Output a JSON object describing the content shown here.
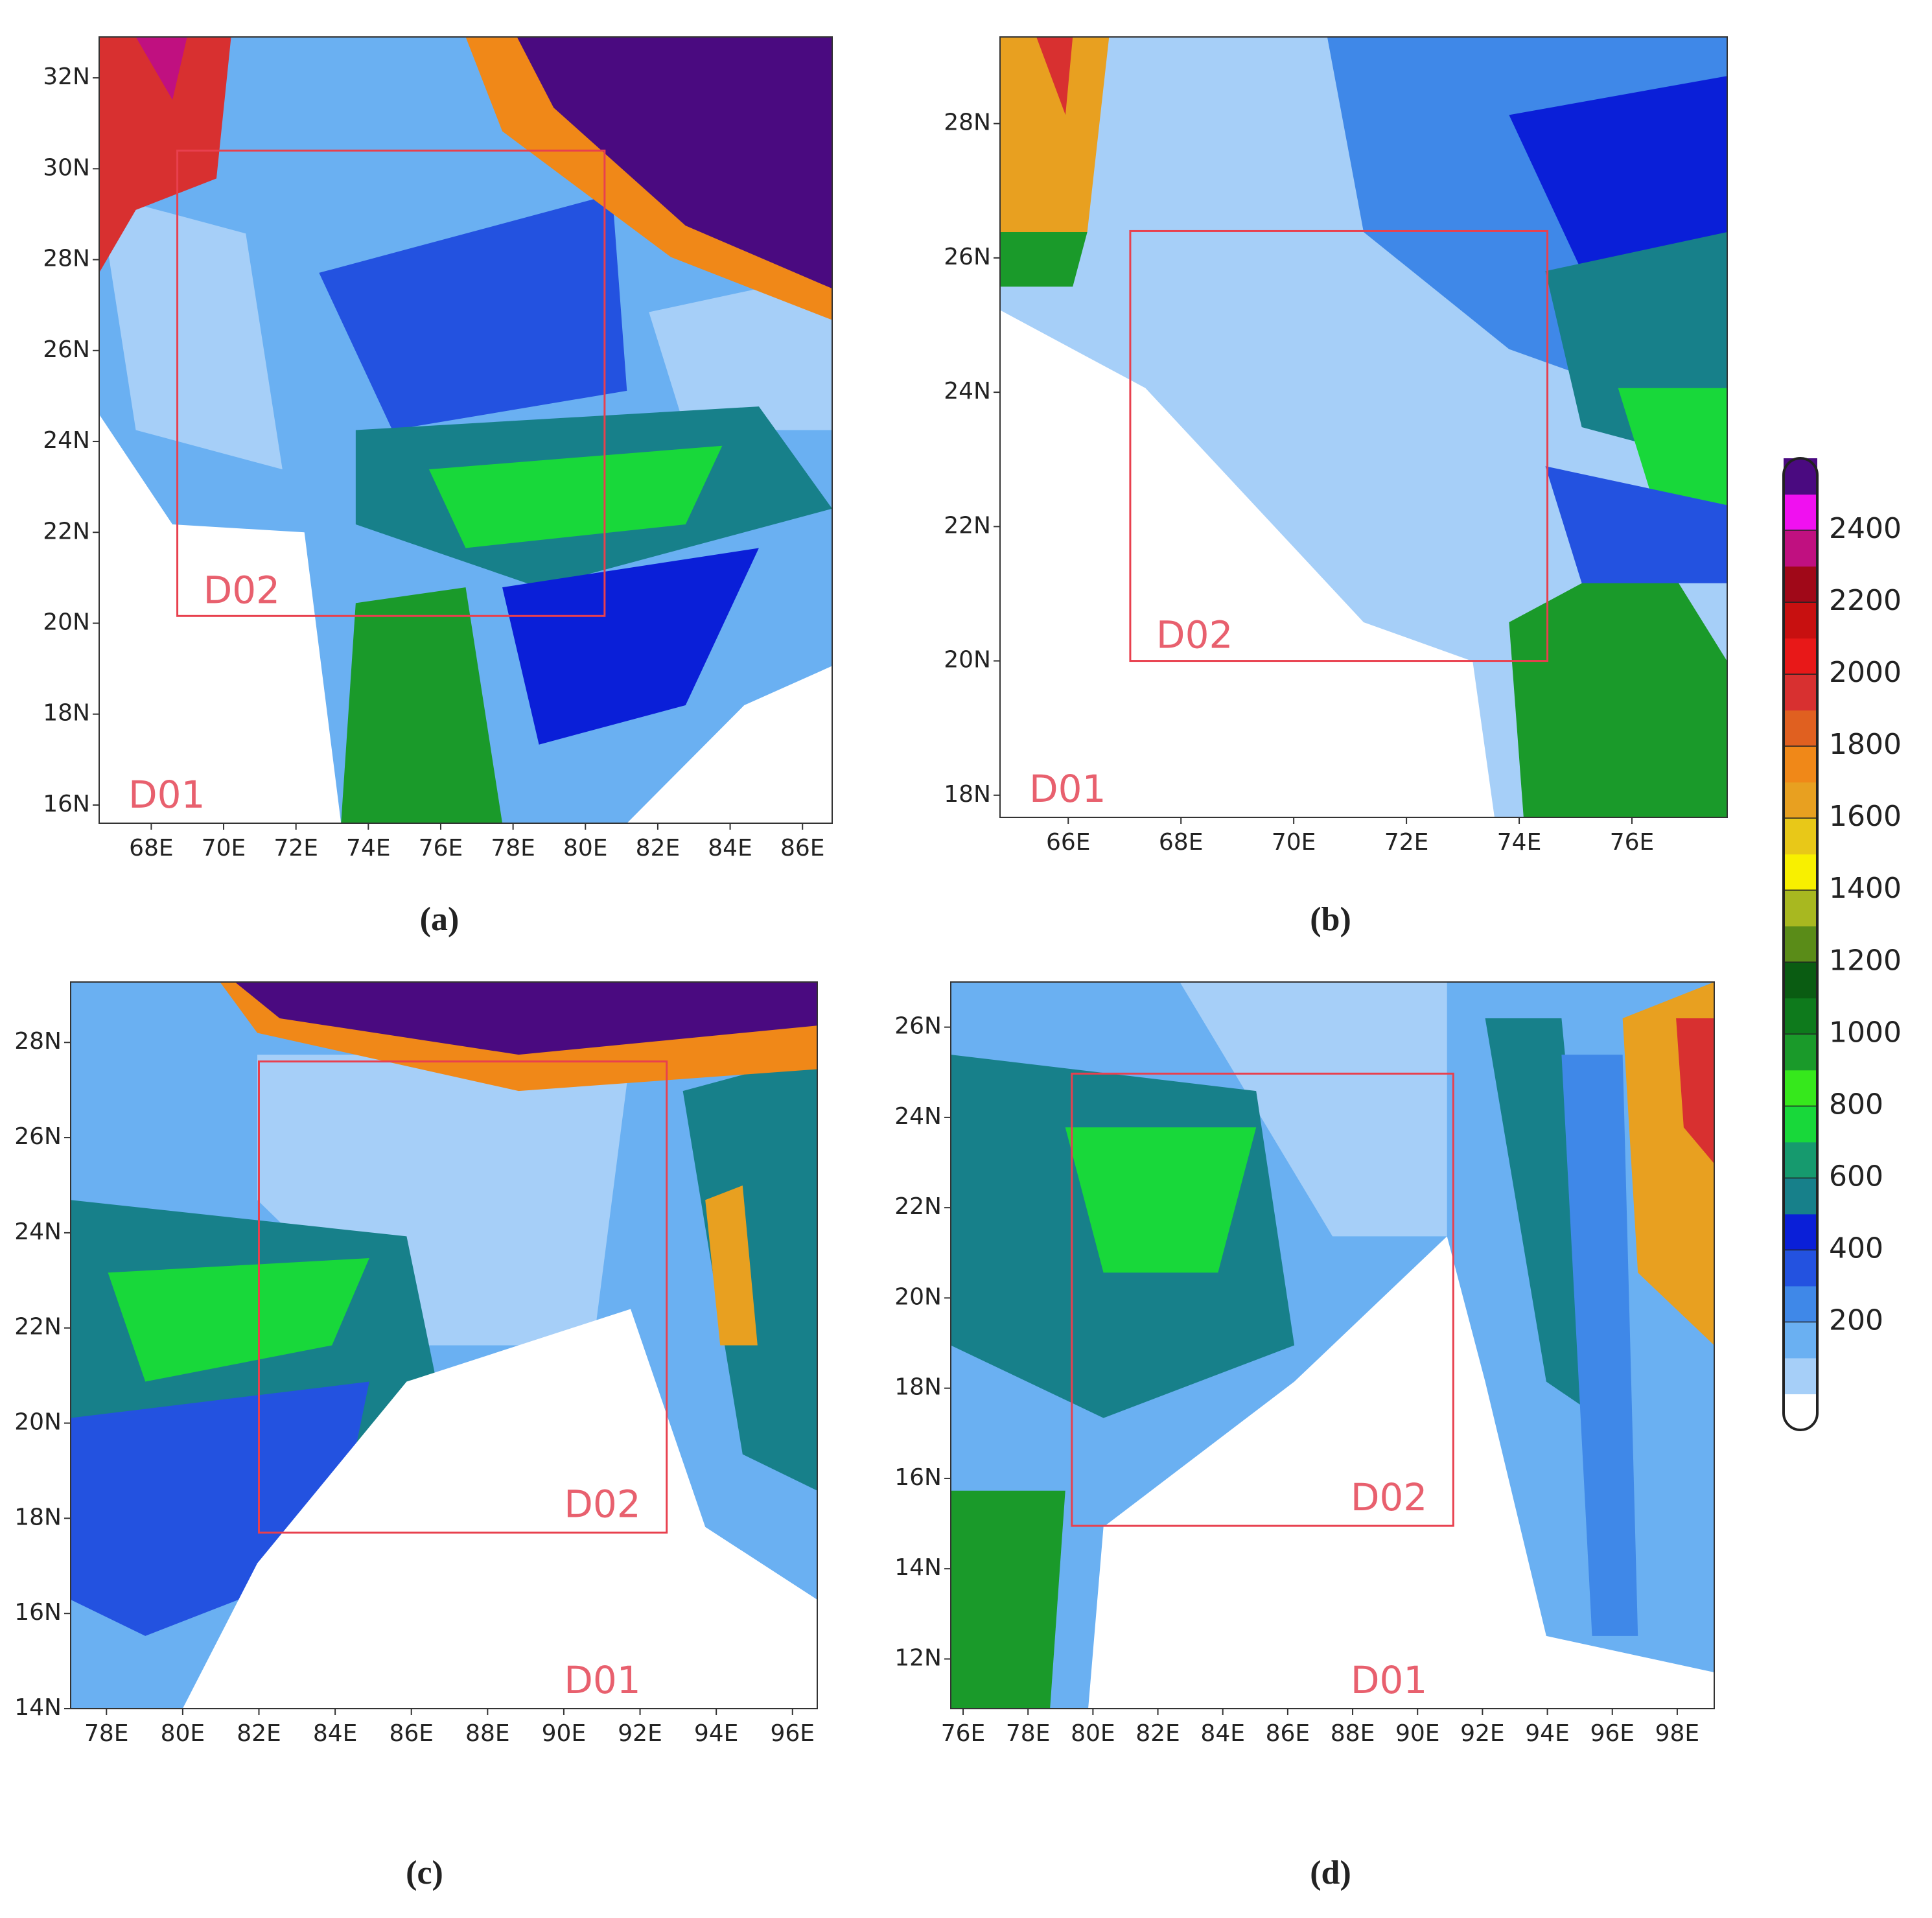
{
  "panels": [
    {
      "caption": "(a)",
      "xlim": [
        66.56,
        86.82
      ],
      "ylim": [
        15.6,
        32.9
      ],
      "xticks": [
        {
          "value": 68,
          "label": "68E"
        },
        {
          "value": 70,
          "label": "70E"
        },
        {
          "value": 72,
          "label": "72E"
        },
        {
          "value": 74,
          "label": "74E"
        },
        {
          "value": 76,
          "label": "76E"
        },
        {
          "value": 78,
          "label": "78E"
        },
        {
          "value": 80,
          "label": "80E"
        },
        {
          "value": 82,
          "label": "82E"
        },
        {
          "value": 84,
          "label": "84E"
        },
        {
          "value": 86,
          "label": "86E"
        }
      ],
      "yticks": [
        {
          "value": 16,
          "label": "16N"
        },
        {
          "value": 18,
          "label": "18N"
        },
        {
          "value": 20,
          "label": "20N"
        },
        {
          "value": 22,
          "label": "22N"
        },
        {
          "value": 24,
          "label": "24N"
        },
        {
          "value": 26,
          "label": "26N"
        },
        {
          "value": 28,
          "label": "28N"
        },
        {
          "value": 30,
          "label": "30N"
        },
        {
          "value": 32,
          "label": "32N"
        }
      ],
      "inner_box": {
        "label": "D02",
        "lon": [
          68.72,
          80.53
        ],
        "lat": [
          20.16,
          30.4
        ]
      },
      "outer_label": "D01"
    },
    {
      "caption": "(b)",
      "xlim": [
        64.79,
        77.69
      ],
      "ylim": [
        17.67,
        29.29
      ],
      "xticks": [
        {
          "value": 66,
          "label": "66E"
        },
        {
          "value": 68,
          "label": "68E"
        },
        {
          "value": 70,
          "label": "70E"
        },
        {
          "value": 72,
          "label": "72E"
        },
        {
          "value": 74,
          "label": "74E"
        },
        {
          "value": 76,
          "label": "76E"
        }
      ],
      "yticks": [
        {
          "value": 18,
          "label": "18N"
        },
        {
          "value": 20,
          "label": "20N"
        },
        {
          "value": 22,
          "label": "22N"
        },
        {
          "value": 24,
          "label": "24N"
        },
        {
          "value": 26,
          "label": "26N"
        },
        {
          "value": 28,
          "label": "28N"
        }
      ],
      "inner_box": {
        "label": "D02",
        "lon": [
          67.1,
          74.5
        ],
        "lat": [
          20.0,
          26.4
        ]
      },
      "outer_label": "D01"
    },
    {
      "caption": "(c)",
      "xlim": [
        77.06,
        96.65
      ],
      "ylim": [
        14.0,
        29.27
      ],
      "xticks": [
        {
          "value": 78,
          "label": "78E"
        },
        {
          "value": 80,
          "label": "80E"
        },
        {
          "value": 82,
          "label": "82E"
        },
        {
          "value": 84,
          "label": "84E"
        },
        {
          "value": 86,
          "label": "86E"
        },
        {
          "value": 88,
          "label": "88E"
        },
        {
          "value": 90,
          "label": "90E"
        },
        {
          "value": 92,
          "label": "92E"
        },
        {
          "value": 94,
          "label": "94E"
        },
        {
          "value": 96,
          "label": "96E"
        }
      ],
      "yticks": [
        {
          "value": 14,
          "label": "14N"
        },
        {
          "value": 16,
          "label": "16N"
        },
        {
          "value": 18,
          "label": "18N"
        },
        {
          "value": 20,
          "label": "20N"
        },
        {
          "value": 22,
          "label": "22N"
        },
        {
          "value": 24,
          "label": "24N"
        },
        {
          "value": 26,
          "label": "26N"
        },
        {
          "value": 28,
          "label": "28N"
        }
      ],
      "inner_box": {
        "label": "D02",
        "lon": [
          82.0,
          92.7
        ],
        "lat": [
          17.7,
          27.6
        ]
      },
      "outer_label": "D01"
    },
    {
      "caption": "(d)",
      "xlim": [
        75.62,
        99.14
      ],
      "ylim": [
        10.9,
        27.0
      ],
      "xticks": [
        {
          "value": 76,
          "label": "76E"
        },
        {
          "value": 78,
          "label": "78E"
        },
        {
          "value": 80,
          "label": "80E"
        },
        {
          "value": 82,
          "label": "82E"
        },
        {
          "value": 84,
          "label": "84E"
        },
        {
          "value": 86,
          "label": "86E"
        },
        {
          "value": 88,
          "label": "88E"
        },
        {
          "value": 90,
          "label": "90E"
        },
        {
          "value": 92,
          "label": "92E"
        },
        {
          "value": 94,
          "label": "94E"
        },
        {
          "value": 96,
          "label": "96E"
        },
        {
          "value": 98,
          "label": "98E"
        }
      ],
      "yticks": [
        {
          "value": 12,
          "label": "12N"
        },
        {
          "value": 14,
          "label": "14N"
        },
        {
          "value": 16,
          "label": "16N"
        },
        {
          "value": 18,
          "label": "18N"
        },
        {
          "value": 20,
          "label": "20N"
        },
        {
          "value": 22,
          "label": "22N"
        },
        {
          "value": 24,
          "label": "24N"
        },
        {
          "value": 26,
          "label": "26N"
        }
      ],
      "inner_box": {
        "label": "D02",
        "lon": [
          79.35,
          91.1
        ],
        "lat": [
          14.95,
          24.97
        ]
      },
      "outer_label": "D01"
    }
  ],
  "colorbar": {
    "lim": [
      -100,
      2600
    ],
    "ticks": [
      200,
      400,
      600,
      800,
      1000,
      1200,
      1400,
      1600,
      1800,
      2000,
      2200,
      2400
    ],
    "colors": [
      "#ffffff",
      "#a6cff8",
      "#6ab0f2",
      "#3f88e8",
      "#2352e0",
      "#0a1fd8",
      "#17808a",
      "#169a6e",
      "#18d83a",
      "#36e81c",
      "#1a9a2a",
      "#0e7a1c",
      "#0a5c12",
      "#5a8c18",
      "#a8b820",
      "#f8f000",
      "#e8c818",
      "#e8a020",
      "#f08818",
      "#e06020",
      "#d83030",
      "#e81818",
      "#c81010",
      "#a00818",
      "#c01080",
      "#f010f0",
      "#4a0a80"
    ]
  }
}
